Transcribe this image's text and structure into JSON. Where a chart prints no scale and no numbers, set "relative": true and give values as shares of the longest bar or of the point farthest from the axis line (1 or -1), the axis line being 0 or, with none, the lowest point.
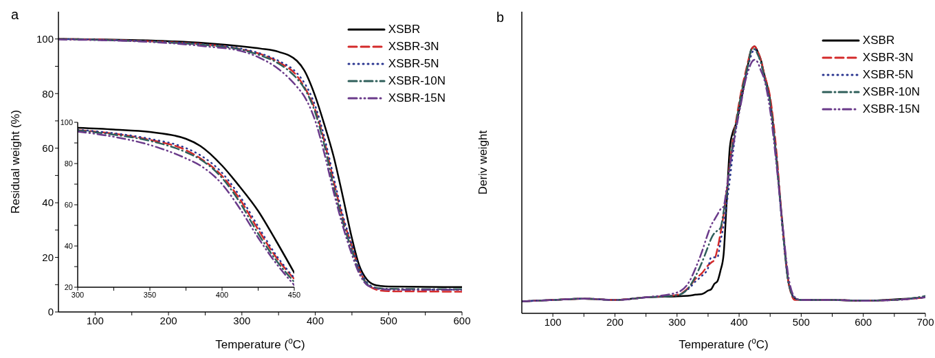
{
  "chart_data": [
    {
      "type": "line",
      "title": "a",
      "xlabel": "Temperature ($^{o}$C)",
      "ylabel": "Residual weight (%)",
      "xlim": [
        50,
        600
      ],
      "ylim": [
        0,
        110
      ],
      "xticks": [
        100,
        {
          "value": 150,
          "label": null
        },
        200,
        {
          "value": 250,
          "label": null
        },
        300,
        {
          "value": 350,
          "label": null
        },
        400,
        {
          "value": 450,
          "label": null
        },
        500,
        {
          "value": 550,
          "label": null
        },
        {
          "value": 600,
          "label": "600"
        }
      ],
      "yticks": [
        0,
        {
          "value": 10,
          "label": null
        },
        20,
        {
          "value": 30,
          "label": null
        },
        40,
        {
          "value": 50,
          "label": null
        },
        60,
        {
          "value": 70,
          "label": null
        },
        80,
        {
          "value": 90,
          "label": null
        },
        100
      ],
      "legend": "top right",
      "x": [
        50,
        100,
        150,
        200,
        250,
        300,
        325,
        350,
        375,
        385,
        400,
        412,
        425,
        437,
        450,
        460,
        470,
        480,
        490,
        500,
        550,
        600
      ],
      "series": [
        {
          "name": "XSBR",
          "color": "#000000",
          "line_style": "solid",
          "values": [
            100,
            99.9,
            99.6,
            99.2,
            98.5,
            97.3,
            96.5,
            95.3,
            92,
            88.5,
            79,
            69,
            57,
            43,
            27,
            17,
            12,
            10,
            9.5,
            9.3,
            9.2,
            9.1
          ]
        },
        {
          "name": "XSBR-3N",
          "color": "#d42a2a",
          "line_style": "dashed",
          "values": [
            100,
            99.8,
            99.4,
            98.9,
            98,
            96.2,
            94.5,
            91.5,
            86.5,
            82.5,
            74,
            63,
            48,
            35,
            24,
            15.5,
            10.5,
            8.5,
            7.8,
            7.6,
            7.5,
            7.4
          ]
        },
        {
          "name": "XSBR-5N",
          "color": "#2a3590",
          "line_style": "dotted",
          "values": [
            100,
            99.8,
            99.4,
            98.9,
            98,
            96.4,
            94.7,
            92,
            87.5,
            84,
            75.5,
            64.5,
            49.5,
            36,
            24.5,
            16,
            11,
            9,
            8.5,
            8.3,
            8.2,
            8.2
          ]
        },
        {
          "name": "XSBR-10N",
          "color": "#2f5f5a",
          "line_style": "dashdot",
          "values": [
            100,
            99.7,
            99.3,
            98.7,
            97.8,
            96,
            94,
            91,
            85.5,
            82,
            73,
            61.5,
            46,
            33.5,
            22.5,
            14.5,
            10.5,
            9,
            8.6,
            8.5,
            8.4,
            8.4
          ]
        },
        {
          "name": "XSBR-15N",
          "color": "#6a3a8a",
          "line_style": "dashdotdot",
          "values": [
            99.8,
            99.6,
            99.2,
            98.5,
            97.3,
            95.5,
            93,
            89,
            82.5,
            79,
            70,
            58.5,
            44,
            32,
            21,
            14,
            10,
            8.8,
            8.3,
            8.2,
            8.1,
            8.1
          ]
        }
      ]
    },
    {
      "type": "line",
      "xlim": [
        300,
        450
      ],
      "ylim": [
        20,
        100
      ],
      "xticks": [
        300,
        {
          "value": 325,
          "label": null
        },
        350,
        {
          "value": 375,
          "label": null
        },
        400,
        {
          "value": 425,
          "label": null
        },
        450
      ],
      "yticks": [
        20,
        {
          "value": 30,
          "label": null
        },
        40,
        {
          "value": 50,
          "label": null
        },
        60,
        {
          "value": 70,
          "label": null
        },
        80,
        {
          "value": 90,
          "label": null
        },
        100
      ],
      "x": [
        300,
        325,
        350,
        375,
        385,
        400,
        412,
        425,
        437,
        450
      ],
      "series": [
        {
          "color": "#000000",
          "line_style": "solid",
          "values": [
            97.3,
            96.5,
            95.3,
            92,
            88.5,
            79,
            69,
            57,
            43,
            27
          ]
        },
        {
          "color": "#d42a2a",
          "line_style": "dashed",
          "values": [
            96.2,
            94.5,
            91.5,
            86.5,
            82.5,
            74,
            63,
            48,
            35,
            24
          ]
        },
        {
          "color": "#2a3590",
          "line_style": "dotted",
          "values": [
            96.4,
            94.7,
            92,
            87.5,
            84,
            75.5,
            64.5,
            49.5,
            36,
            24.5
          ]
        },
        {
          "color": "#2f5f5a",
          "line_style": "dashdot",
          "values": [
            96,
            94,
            91,
            85.5,
            82,
            73,
            61.5,
            46,
            33.5,
            22.5
          ]
        },
        {
          "color": "#6a3a8a",
          "line_style": "dashdotdot",
          "values": [
            95.5,
            93,
            89,
            82.5,
            79,
            70,
            58.5,
            44,
            32,
            21
          ]
        }
      ]
    },
    {
      "type": "line",
      "title": "b",
      "xlabel": "Temperature ($^{o}$C)",
      "ylabel": "Deriv weight",
      "relative": true,
      "xlim": [
        50,
        700
      ],
      "xticks": [
        100,
        {
          "value": 150,
          "label": null
        },
        200,
        {
          "value": 250,
          "label": null
        },
        300,
        {
          "value": 350,
          "label": null
        },
        400,
        {
          "value": 450,
          "label": null
        },
        500,
        {
          "value": 550,
          "label": null
        },
        600,
        {
          "value": 650,
          "label": null
        },
        700
      ],
      "legend": "top right",
      "x": [
        50,
        100,
        150,
        200,
        250,
        300,
        320,
        330,
        340,
        350,
        355,
        360,
        365,
        370,
        375,
        380,
        385,
        390,
        395,
        400,
        405,
        410,
        415,
        420,
        425,
        430,
        435,
        440,
        450,
        460,
        470,
        480,
        490,
        500,
        550,
        600,
        650,
        700
      ],
      "series": [
        {
          "name": "XSBR",
          "color": "#000000",
          "line_style": "solid",
          "values": [
            0.045,
            0.05,
            0.055,
            0.05,
            0.06,
            0.064,
            0.066,
            0.07,
            0.072,
            0.085,
            0.09,
            0.11,
            0.12,
            0.16,
            0.22,
            0.42,
            0.62,
            0.68,
            0.71,
            0.76,
            0.82,
            0.88,
            0.94,
            0.99,
            1.0,
            0.98,
            0.95,
            0.9,
            0.8,
            0.58,
            0.33,
            0.11,
            0.056,
            0.05,
            0.05,
            0.047,
            0.052,
            0.06
          ]
        },
        {
          "name": "XSBR-3N",
          "color": "#d42a2a",
          "line_style": "dashed",
          "values": [
            0.045,
            0.05,
            0.055,
            0.05,
            0.06,
            0.069,
            0.1,
            0.13,
            0.15,
            0.18,
            0.19,
            0.2,
            0.24,
            0.3,
            0.37,
            0.46,
            0.56,
            0.65,
            0.72,
            0.79,
            0.85,
            0.9,
            0.95,
            0.99,
            1.0,
            0.98,
            0.95,
            0.9,
            0.81,
            0.61,
            0.32,
            0.11,
            0.05,
            0.05,
            0.05,
            0.048,
            0.05,
            0.06
          ]
        },
        {
          "name": "XSBR-5N",
          "color": "#2a3590",
          "line_style": "dotted",
          "values": [
            0.045,
            0.05,
            0.055,
            0.05,
            0.06,
            0.068,
            0.095,
            0.12,
            0.14,
            0.17,
            0.21,
            0.21,
            0.21,
            0.27,
            0.33,
            0.41,
            0.5,
            0.6,
            0.69,
            0.76,
            0.82,
            0.88,
            0.93,
            0.97,
            0.99,
            0.97,
            0.94,
            0.89,
            0.79,
            0.59,
            0.31,
            0.11,
            0.056,
            0.05,
            0.05,
            0.048,
            0.05,
            0.06
          ]
        },
        {
          "name": "XSBR-10N",
          "color": "#2f5f5a",
          "line_style": "dashdot",
          "values": [
            0.045,
            0.05,
            0.055,
            0.05,
            0.06,
            0.067,
            0.1,
            0.14,
            0.19,
            0.25,
            0.28,
            0.3,
            0.31,
            0.32,
            0.38,
            0.45,
            0.55,
            0.64,
            0.71,
            0.78,
            0.84,
            0.89,
            0.94,
            0.99,
            0.99,
            0.97,
            0.94,
            0.89,
            0.79,
            0.58,
            0.32,
            0.11,
            0.056,
            0.05,
            0.05,
            0.048,
            0.05,
            0.065
          ]
        },
        {
          "name": "XSBR-15N",
          "color": "#6a3a8a",
          "line_style": "dashdotdot",
          "values": [
            0.045,
            0.05,
            0.055,
            0.05,
            0.06,
            0.078,
            0.12,
            0.17,
            0.23,
            0.3,
            0.33,
            0.35,
            0.37,
            0.39,
            0.4,
            0.47,
            0.55,
            0.62,
            0.69,
            0.75,
            0.81,
            0.87,
            0.91,
            0.94,
            0.95,
            0.94,
            0.91,
            0.88,
            0.76,
            0.56,
            0.33,
            0.13,
            0.06,
            0.05,
            0.05,
            0.047,
            0.05,
            0.06
          ]
        }
      ]
    }
  ]
}
